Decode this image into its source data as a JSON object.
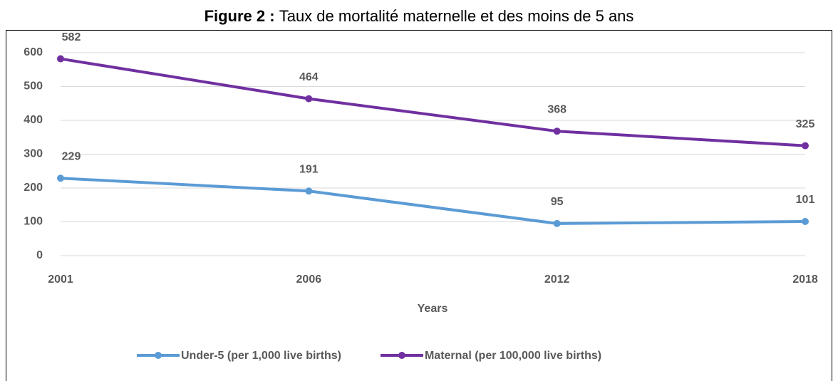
{
  "chart_data": {
    "type": "line",
    "figure_label": "Figure 2 :",
    "title": "Taux de mortalité maternelle et des moins de 5 ans",
    "x_label": "Years",
    "categories": [
      "2001",
      "2006",
      "2012",
      "2018"
    ],
    "series": [
      {
        "name": "Under-5 (per 1,000 live births)",
        "color": "#5b9bd5",
        "values": [
          229,
          191,
          95,
          101
        ]
      },
      {
        "name": "Maternal (per 100,000 live births)",
        "color": "#7030a0",
        "values": [
          582,
          464,
          368,
          325
        ]
      }
    ],
    "ylim": [
      0,
      600
    ],
    "yticks": [
      0,
      100,
      200,
      300,
      400,
      500,
      600
    ],
    "grid": true,
    "legend": "bottom"
  }
}
